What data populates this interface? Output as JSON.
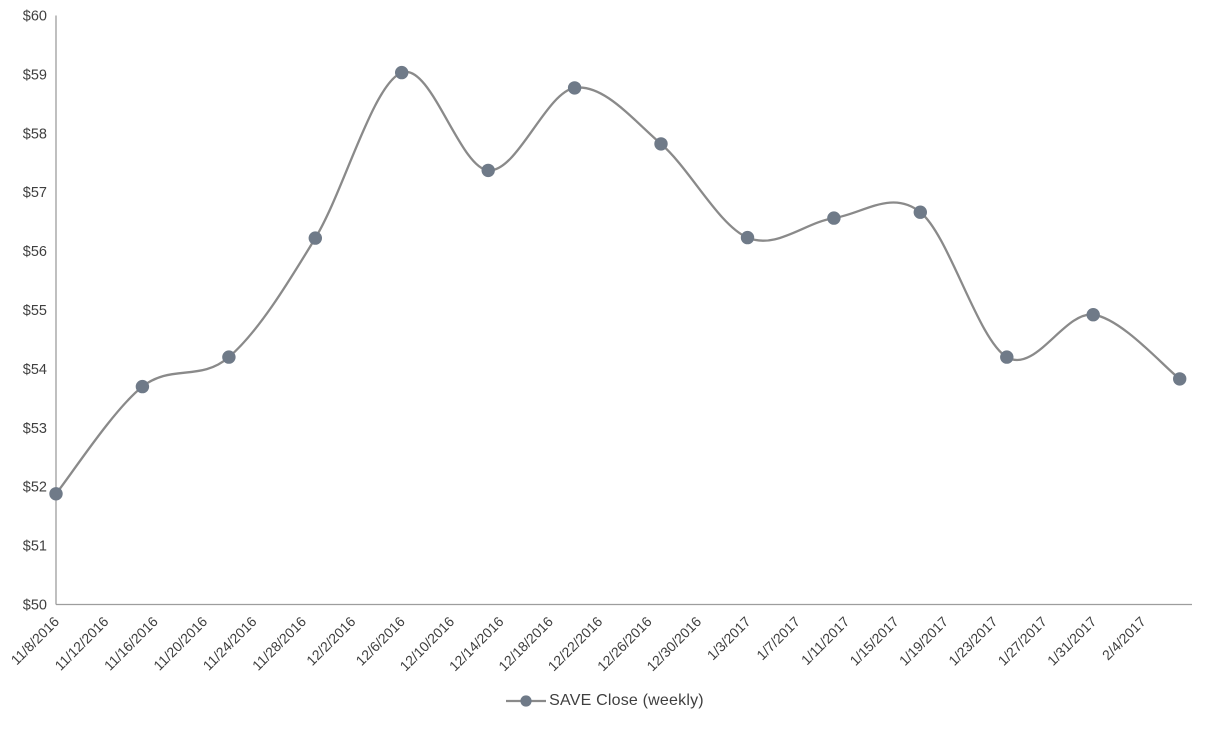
{
  "chart_data": {
    "type": "line",
    "title": "",
    "xlabel": "",
    "ylabel": "",
    "smooth": true,
    "grid": false,
    "legend_position": "bottom-center",
    "ylim": [
      50,
      60
    ],
    "y_tick_labels": [
      "$50",
      "$51",
      "$52",
      "$53",
      "$54",
      "$55",
      "$56",
      "$57",
      "$58",
      "$59",
      "$60"
    ],
    "x_tick_labels": [
      "11/8/2016",
      "11/12/2016",
      "11/16/2016",
      "11/20/2016",
      "11/24/2016",
      "11/28/2016",
      "12/2/2016",
      "12/6/2016",
      "12/10/2016",
      "12/14/2016",
      "12/18/2016",
      "12/22/2016",
      "12/26/2016",
      "12/30/2016",
      "1/3/2017",
      "1/7/2017",
      "1/11/2017",
      "1/15/2017",
      "1/19/2017",
      "1/23/2017",
      "1/27/2017",
      "1/31/2017",
      "2/4/2017"
    ],
    "series": [
      {
        "name": "SAVE Close (weekly)",
        "x": [
          "11/8/2016",
          "11/15/2016",
          "11/22/2016",
          "11/29/2016",
          "12/6/2016",
          "12/13/2016",
          "12/20/2016",
          "12/27/2016",
          "1/3/2017",
          "1/10/2017",
          "1/17/2017",
          "1/24/2017",
          "1/31/2017",
          "2/7/2017"
        ],
        "values": [
          51.88,
          53.7,
          54.2,
          56.22,
          59.03,
          57.37,
          58.77,
          57.82,
          56.23,
          56.56,
          56.66,
          54.2,
          54.92,
          53.83
        ]
      }
    ],
    "legend": {
      "label": "SAVE Close (weekly)"
    },
    "colors": {
      "line": "#8a8a8a",
      "marker": "#6f7a88",
      "axis": "#9d9d9d",
      "tick_text": "#3f3f3f",
      "legend_text": "#3f3f3f",
      "background": "#ffffff"
    }
  }
}
